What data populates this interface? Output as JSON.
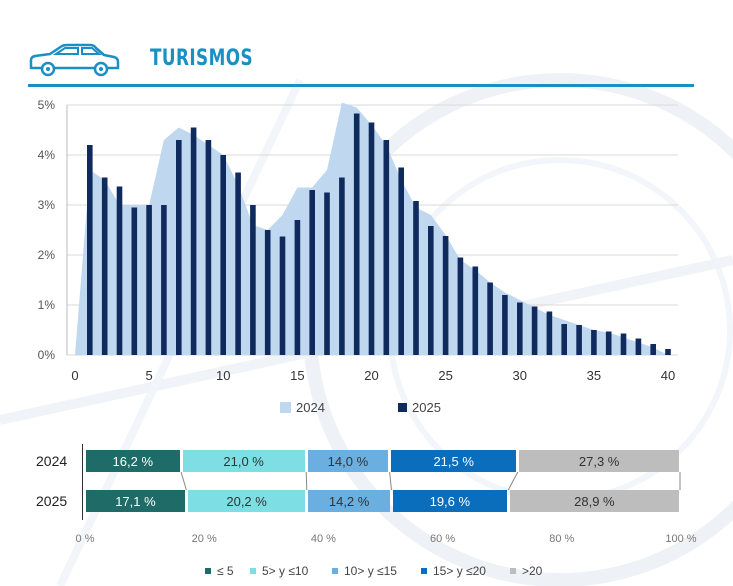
{
  "header": {
    "title": "TURISMOS",
    "icon": "car-icon"
  },
  "colors": {
    "accent": "#1a8fc4",
    "area2024": "#bfd7ef",
    "bar2025": "#0f2a5c",
    "grid": "#d9d9d9"
  },
  "chart_data": [
    {
      "type": "bar+area",
      "title": "",
      "xlabel": "",
      "ylabel": "",
      "xlim": [
        0,
        40
      ],
      "ylim": [
        0,
        5
      ],
      "xticks": [
        "0",
        "5",
        "10",
        "15",
        "20",
        "25",
        "30",
        "35",
        "40"
      ],
      "yticks": [
        "0%",
        "1%",
        "2%",
        "3%",
        "4%",
        "5%"
      ],
      "series": [
        {
          "name": "2024",
          "kind": "area",
          "x": [
            0,
            1,
            2,
            3,
            4,
            5,
            6,
            7,
            8,
            9,
            10,
            11,
            12,
            13,
            14,
            15,
            16,
            17,
            18,
            19,
            20,
            21,
            22,
            23,
            24,
            25,
            26,
            27,
            28,
            29,
            30,
            31,
            32,
            33,
            34,
            35,
            36,
            37,
            38,
            39,
            40
          ],
          "values": [
            0,
            3.7,
            3.5,
            3.0,
            3.0,
            3.0,
            4.3,
            4.55,
            4.4,
            4.2,
            4.0,
            3.4,
            2.6,
            2.5,
            2.8,
            3.35,
            3.35,
            3.7,
            5.05,
            4.95,
            4.6,
            4.2,
            3.5,
            2.95,
            2.8,
            2.4,
            1.9,
            1.7,
            1.45,
            1.25,
            1.1,
            0.95,
            0.8,
            0.7,
            0.6,
            0.5,
            0.45,
            0.35,
            0.25,
            0.15,
            0
          ]
        },
        {
          "name": "2025",
          "kind": "bar",
          "x": [
            1,
            2,
            3,
            4,
            5,
            6,
            7,
            8,
            9,
            10,
            11,
            12,
            13,
            14,
            15,
            16,
            17,
            18,
            19,
            20,
            21,
            22,
            23,
            24,
            25,
            26,
            27,
            28,
            29,
            30,
            31,
            32,
            33,
            34,
            35,
            36,
            37,
            38,
            39,
            40
          ],
          "values": [
            4.2,
            3.55,
            3.37,
            2.95,
            3.0,
            3.0,
            4.3,
            4.55,
            4.3,
            4.0,
            3.65,
            3.0,
            2.5,
            2.37,
            2.7,
            3.3,
            3.25,
            3.55,
            4.83,
            4.65,
            4.3,
            3.75,
            3.08,
            2.58,
            2.38,
            1.95,
            1.77,
            1.45,
            1.2,
            1.05,
            0.97,
            0.87,
            0.62,
            0.6,
            0.5,
            0.47,
            0.43,
            0.33,
            0.22,
            0.12
          ]
        }
      ],
      "legend": [
        "2024",
        "2025"
      ]
    },
    {
      "type": "stacked-bar-100",
      "categories": [
        "2024",
        "2025"
      ],
      "xticks": [
        "0 %",
        "20 %",
        "40 %",
        "60 %",
        "80 %",
        "100 %"
      ],
      "series": [
        {
          "name": "≤ 5",
          "color": "#1e6b67",
          "values": [
            16.2,
            17.1
          ],
          "labels": [
            "16,2 %",
            "17,1 %"
          ]
        },
        {
          "name": "5> y ≤10",
          "color": "#7ddfe4",
          "values": [
            21.0,
            20.2
          ],
          "labels": [
            "21,0 %",
            "20,2 %"
          ]
        },
        {
          "name": "10> y ≤15",
          "color": "#6aafdf",
          "values": [
            14.0,
            14.2
          ],
          "labels": [
            "14,0 %",
            "14,2 %"
          ]
        },
        {
          "name": "15> y ≤20",
          "color": "#0a6ebd",
          "values": [
            21.5,
            19.6
          ],
          "labels": [
            "21,5 %",
            "19,6 %"
          ]
        },
        {
          "name": ">20",
          "color": "#bdbdbd",
          "values": [
            27.3,
            28.9
          ],
          "labels": [
            "27,3 %",
            "28,9 %"
          ]
        }
      ]
    }
  ]
}
